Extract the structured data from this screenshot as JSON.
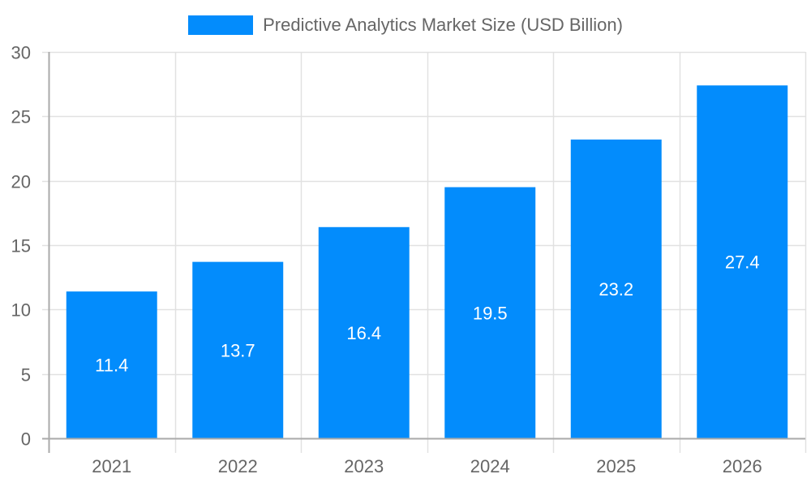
{
  "legend": {
    "label": "Predictive Analytics Market Size (USD Billion)",
    "color": "#038cfc"
  },
  "chart_data": {
    "type": "bar",
    "title": "",
    "categories": [
      "2021",
      "2022",
      "2023",
      "2024",
      "2025",
      "2026"
    ],
    "series": [
      {
        "name": "Predictive Analytics Market Size (USD Billion)",
        "values": [
          11.4,
          13.7,
          16.4,
          19.5,
          23.2,
          27.4
        ],
        "color": "#038cfc"
      }
    ],
    "data_labels": [
      "11.4",
      "13.7",
      "16.4",
      "19.5",
      "23.2",
      "27.4"
    ],
    "xlabel": "",
    "ylabel": "",
    "ylim": [
      0,
      30
    ],
    "yticks": [
      0,
      5,
      10,
      15,
      20,
      25,
      30
    ],
    "grid": true,
    "legend_position": "top"
  },
  "colors": {
    "grid": "#e1e1e1",
    "axis": "#aaaaaa",
    "tick_text": "#666666",
    "label_text": "#ffffff"
  }
}
